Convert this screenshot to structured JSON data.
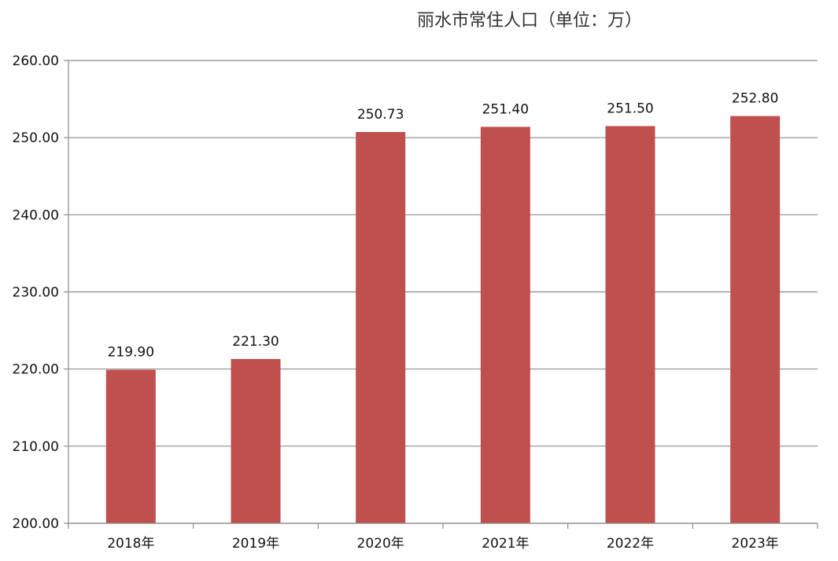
{
  "chart_data": {
    "type": "bar",
    "title": "丽水市常住人口（单位：万）",
    "categories": [
      "2018年",
      "2019年",
      "2020年",
      "2021年",
      "2022年",
      "2023年"
    ],
    "values": [
      219.9,
      221.3,
      250.73,
      251.4,
      251.5,
      252.8
    ],
    "data_labels": [
      "219.90",
      "221.30",
      "250.73",
      "251.40",
      "251.50",
      "252.80"
    ],
    "y_ticks": [
      "200.00",
      "210.00",
      "220.00",
      "230.00",
      "240.00",
      "250.00",
      "260.00"
    ],
    "ylim": [
      200,
      260
    ],
    "xlabel": "",
    "ylabel": "",
    "grid": true,
    "legend": false,
    "bar_color": "#C0504D",
    "grid_color": "#8C8C8C",
    "axis_color": "#8C8C8C"
  }
}
